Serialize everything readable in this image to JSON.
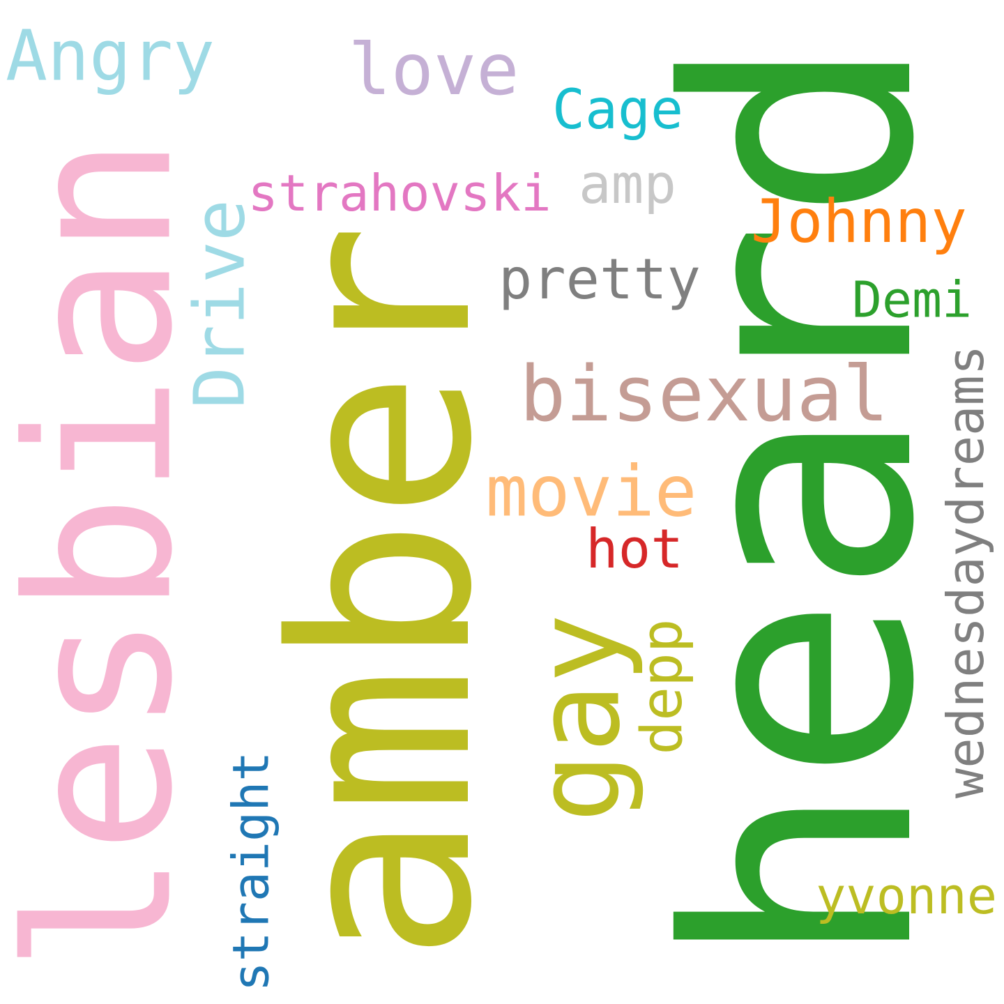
{
  "words": [
    {
      "text": "heard",
      "color": "#2ca02c",
      "orientation": "vertical"
    },
    {
      "text": "amber",
      "color": "#bcbd22",
      "orientation": "vertical"
    },
    {
      "text": "lesbian",
      "color": "#f7b6d2",
      "orientation": "vertical"
    },
    {
      "text": "gay",
      "color": "#bcbd22",
      "orientation": "vertical"
    },
    {
      "text": "bisexual",
      "color": "#c49c94",
      "orientation": "horizontal"
    },
    {
      "text": "wednesdaydreams",
      "color": "#7f7f7f",
      "orientation": "vertical"
    },
    {
      "text": "Angry",
      "color": "#9edae5",
      "orientation": "horizontal"
    },
    {
      "text": "love",
      "color": "#c5b0d5",
      "orientation": "horizontal"
    },
    {
      "text": "Cage",
      "color": "#17becf",
      "orientation": "horizontal"
    },
    {
      "text": "strahovski",
      "color": "#e377c2",
      "orientation": "horizontal"
    },
    {
      "text": "amp",
      "color": "#c7c7c7",
      "orientation": "horizontal"
    },
    {
      "text": "Johnny",
      "color": "#ff7f0e",
      "orientation": "horizontal"
    },
    {
      "text": "Drive",
      "color": "#9edae5",
      "orientation": "vertical"
    },
    {
      "text": "pretty",
      "color": "#7f7f7f",
      "orientation": "horizontal"
    },
    {
      "text": "Demi",
      "color": "#2ca02c",
      "orientation": "horizontal"
    },
    {
      "text": "movie",
      "color": "#ffbb78",
      "orientation": "horizontal"
    },
    {
      "text": "hot",
      "color": "#d62728",
      "orientation": "horizontal"
    },
    {
      "text": "depp",
      "color": "#bcbd22",
      "orientation": "vertical"
    },
    {
      "text": "straight",
      "color": "#1f77b4",
      "orientation": "vertical"
    },
    {
      "text": "yvonne",
      "color": "#bcbd22",
      "orientation": "horizontal"
    }
  ]
}
